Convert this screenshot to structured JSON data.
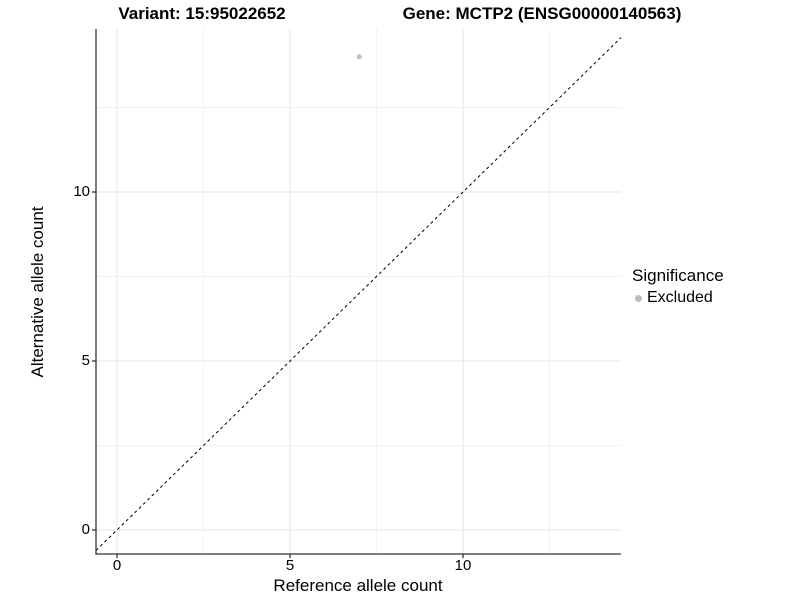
{
  "titles": {
    "variant": "Variant: 15:95022652",
    "gene": "Gene: MCTP2 (ENSG00000140563)"
  },
  "axes": {
    "x": {
      "label": "Reference allele count"
    },
    "y": {
      "label": "Alternative allele count"
    }
  },
  "legend": {
    "title": "Significance",
    "items": [
      {
        "label": "Excluded",
        "color": "#bebebe"
      }
    ]
  },
  "chart_data": {
    "type": "scatter",
    "title": "Variant: 15:95022652  /  Gene: MCTP2 (ENSG00000140563)",
    "xlabel": "Reference allele count",
    "ylabel": "Alternative allele count",
    "xlim": [
      -0.6,
      14.6
    ],
    "ylim": [
      -0.7,
      14.8
    ],
    "x_ticks": [
      0,
      5,
      10
    ],
    "y_ticks": [
      0,
      5,
      10
    ],
    "x_minor_ticks": [
      2.5,
      7.5,
      12.5
    ],
    "y_minor_ticks": [
      2.5,
      7.5,
      12.5
    ],
    "grid": true,
    "legend_position": "right",
    "series": [
      {
        "name": "Excluded",
        "color": "#bebebe",
        "points": [
          {
            "x": 7,
            "y": 14
          }
        ]
      }
    ],
    "reference_line": {
      "type": "identity",
      "slope": 1,
      "intercept": 0,
      "style": "dashed",
      "color": "#000000"
    }
  }
}
